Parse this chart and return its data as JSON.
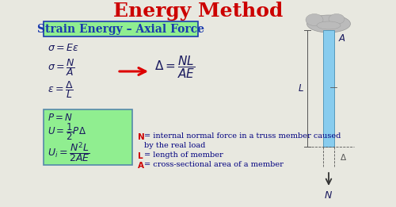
{
  "title": "Energy Method",
  "title_color": "#cc0000",
  "title_fontsize": 18,
  "subtitle": "Strain Energy – Axial Force",
  "subtitle_color": "#1a3aad",
  "subtitle_fontsize": 10,
  "subtitle_box_facecolor": "#90ee90",
  "subtitle_box_edgecolor": "#1a3aad",
  "bg_color": "#e8e8e0",
  "eq1": "$\\sigma = E\\varepsilon$",
  "eq2": "$\\sigma = \\dfrac{N}{A}$",
  "eq3": "$\\varepsilon = \\dfrac{\\Delta}{L}$",
  "eq4": "$\\Delta = \\dfrac{NL}{AE}$",
  "box_eq1": "$P = N$",
  "box_eq2": "$U = \\dfrac{1}{2}P\\Delta$",
  "box_eq3": "$U_i = \\dfrac{N^2L}{2AE}$",
  "box_bg": "#90ee90",
  "box_edge": "#5588aa",
  "math_color": "#1a1a5e",
  "arrow_color": "#dd0000",
  "note_bold_color": "#cc0000",
  "note_text_color": "#000080",
  "diagram_bar_color": "#88ccee",
  "diagram_bar_edge": "#5599bb",
  "diagram_wall_color": "#bbbbbb",
  "diagram_line_color": "#555555"
}
